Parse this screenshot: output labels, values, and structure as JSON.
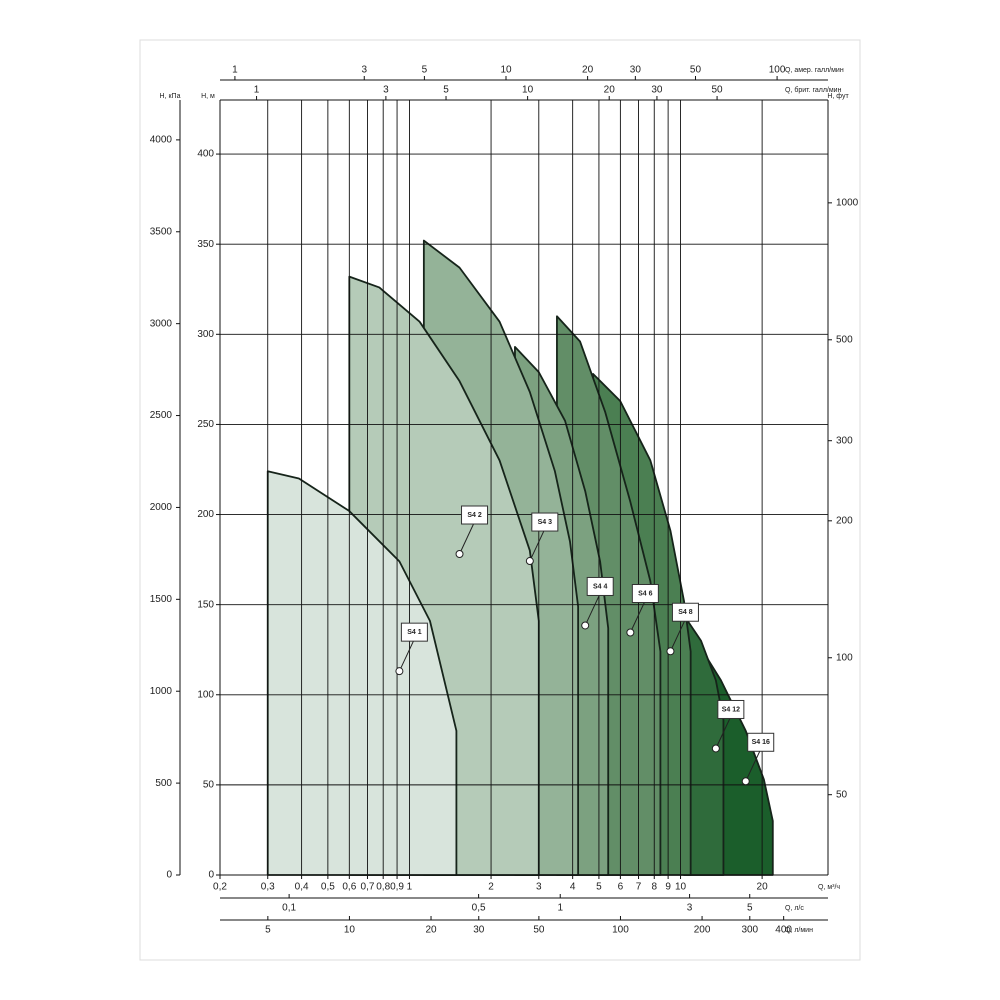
{
  "chart_data": {
    "type": "area",
    "xlabel": "Q, м³/ч",
    "xscale": "log",
    "xlim": [
      0.2,
      35
    ],
    "xticks": [
      {
        "value": 0.2,
        "label": "0,2"
      },
      {
        "value": 0.3,
        "label": "0,3"
      },
      {
        "value": 0.4,
        "label": "0,4"
      },
      {
        "value": 0.5,
        "label": "0,5"
      },
      {
        "value": 0.6,
        "label": "0,6"
      },
      {
        "value": 0.7,
        "label": "0,7"
      },
      {
        "value": 0.8,
        "label": "0,8"
      },
      {
        "value": 0.9,
        "label": "0,9"
      },
      1,
      2,
      3,
      4,
      5,
      6,
      7,
      8,
      9,
      10,
      20
    ],
    "ylabel": "H, м",
    "ylim": [
      0,
      430
    ],
    "yticks": [
      0,
      50,
      100,
      150,
      200,
      250,
      300,
      350,
      400
    ],
    "grid": true,
    "secondary_axes": [
      {
        "label": "H, кПа",
        "side": "left",
        "scale": "linear",
        "lim": [
          0,
          4217
        ],
        "ticks": [
          0,
          500,
          1000,
          1500,
          2000,
          2500,
          3000,
          3500,
          4000
        ]
      },
      {
        "label": "H, фут",
        "side": "right",
        "scale": "log",
        "lim": [
          33.3,
          1683
        ],
        "ticks": [
          50,
          100,
          200,
          300,
          500,
          1000
        ]
      },
      {
        "label": "Q, амер. галл/мин",
        "side": "top",
        "scale": "log",
        "lim": [
          0.881,
          154.1
        ],
        "ticks": [
          1,
          3,
          5,
          10,
          20,
          30,
          50,
          100
        ]
      },
      {
        "label": "Q, брит. галл/мин",
        "side": "top",
        "scale": "log",
        "lim": [
          0.733,
          128.3
        ],
        "ticks": [
          1,
          3,
          5,
          10,
          20,
          30,
          50
        ]
      },
      {
        "label": "Q, л/с",
        "side": "bottom",
        "scale": "log",
        "lim": [
          0.0556,
          9.72
        ],
        "ticks": [
          {
            "value": 0.1,
            "label": "0,1"
          },
          {
            "value": 0.5,
            "label": "0,5"
          },
          1,
          3,
          5
        ]
      },
      {
        "label": "Q, л/мин",
        "side": "bottom",
        "scale": "log",
        "lim": [
          3.33,
          583
        ],
        "ticks": [
          5,
          10,
          20,
          30,
          50,
          100,
          200,
          300,
          400
        ]
      }
    ],
    "series": [
      {
        "name": "S4 1",
        "color": "#d8e4dc",
        "x": [
          0.3,
          0.391,
          0.599,
          0.918,
          1.19,
          1.49
        ],
        "values": [
          224,
          220,
          202,
          174,
          141,
          80
        ]
      },
      {
        "name": "S4 2",
        "color": "#b5cbb8",
        "x": [
          0.6,
          0.774,
          1.09,
          1.53,
          2.15,
          2.78,
          3.0
        ],
        "values": [
          332,
          326,
          307,
          274,
          230,
          180,
          141
        ]
      },
      {
        "name": "S4 3",
        "color": "#94b398",
        "x": [
          1.13,
          1.53,
          2.15,
          2.78,
          3.44,
          3.91,
          4.19
        ],
        "values": [
          352,
          337,
          307,
          268,
          224,
          185,
          149
        ]
      },
      {
        "name": "S4 4",
        "color": "#7ca180",
        "x": [
          2.45,
          3.0,
          3.75,
          4.45,
          5.05,
          5.41
        ],
        "values": [
          293,
          279,
          252,
          213,
          174,
          137
        ]
      },
      {
        "name": "S4 6",
        "color": "#628e67",
        "x": [
          3.5,
          4.26,
          5.27,
          6.53,
          7.74,
          8.43
        ],
        "values": [
          310,
          296,
          257,
          207,
          163,
          124
        ]
      },
      {
        "name": "S4 8",
        "color": "#4b7f52",
        "x": [
          4.76,
          5.99,
          7.74,
          9.18,
          10.3,
          10.9
        ],
        "values": [
          278,
          263,
          230,
          191,
          152,
          124
        ]
      },
      {
        "name": "S4 12",
        "color": "#2f6b3b",
        "x": [
          10.3,
          11.9,
          13.5,
          14.4
        ],
        "values": [
          144,
          130,
          108,
          86
        ]
      },
      {
        "name": "S4 16",
        "color": "#1b5e2b",
        "x": [
          10.3,
          14.1,
          17.4,
          20.3,
          21.9
        ],
        "values": [
          141,
          108,
          80,
          53,
          30
        ]
      }
    ]
  }
}
